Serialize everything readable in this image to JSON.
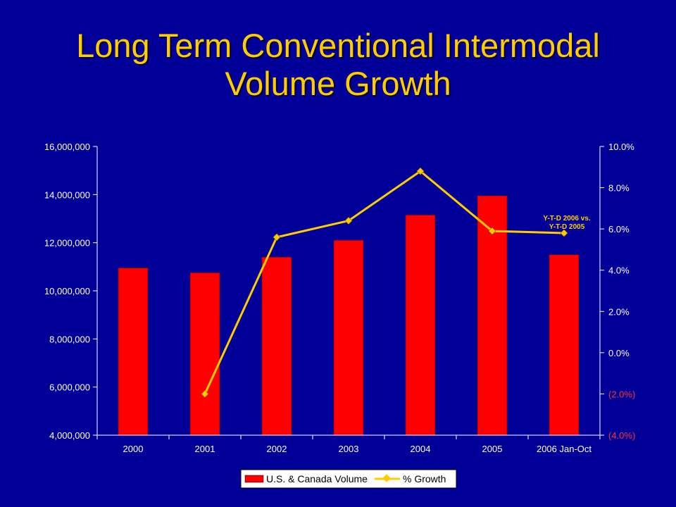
{
  "title": {
    "line1": "Long Term Conventional Intermodal",
    "line2": "Volume Growth"
  },
  "colors": {
    "background": "#000099",
    "title": "#FFCC00",
    "bar": "#FF0000",
    "line": "#FFCC00",
    "axis": "#FFFFFF",
    "negative_label": "#FF3333"
  },
  "chart_data": {
    "type": "bar",
    "categories": [
      "2000",
      "2001",
      "2002",
      "2003",
      "2004",
      "2005",
      "2006 Jan-Oct"
    ],
    "series": [
      {
        "name": "U.S. & Canada Volume",
        "type": "bar",
        "axis": "left",
        "values": [
          10950000,
          10750000,
          11400000,
          12100000,
          13150000,
          13950000,
          11500000
        ]
      },
      {
        "name": "% Growth",
        "type": "line",
        "axis": "right",
        "values": [
          null,
          -2.0,
          5.6,
          6.4,
          8.8,
          5.9,
          5.8
        ]
      }
    ],
    "y_left": {
      "min": 4000000,
      "max": 16000000,
      "step": 2000000,
      "tick_labels": [
        "4,000,000",
        "6,000,000",
        "8,000,000",
        "10,000,000",
        "12,000,000",
        "14,000,000",
        "16,000,000"
      ]
    },
    "y_right": {
      "min": -4,
      "max": 10,
      "step": 2,
      "tick_labels": [
        "(4.0%)",
        "(2.0%)",
        "0.0%",
        "2.0%",
        "4.0%",
        "6.0%",
        "8.0%",
        "10.0%"
      ]
    },
    "annotation": {
      "line1": "Y-T-D 2006 vs.",
      "line2": "Y-T-D 2005",
      "category_index": 6
    },
    "legend": {
      "position": "bottom",
      "bar_label": "U.S. & Canada Volume",
      "line_label": "% Growth"
    },
    "grid": false
  }
}
